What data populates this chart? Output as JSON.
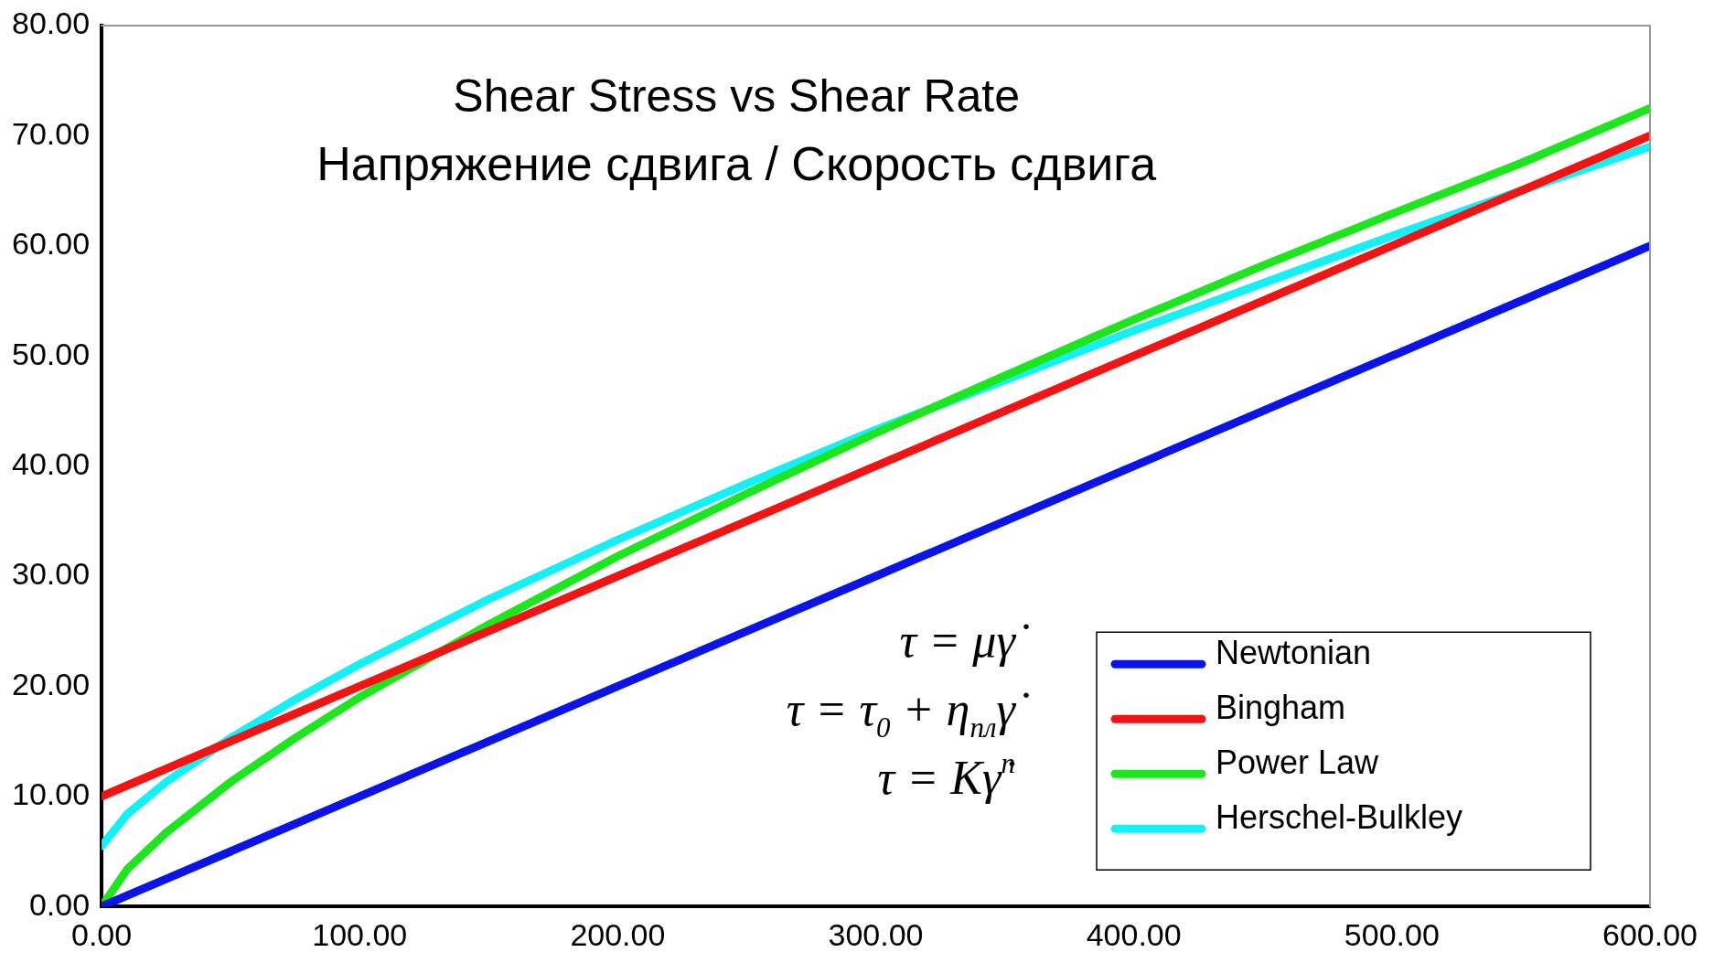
{
  "chart_data": {
    "type": "line",
    "title": "Shear Stress vs Shear Rate",
    "subtitle": "Напряжение сдвига / Скорость сдвига",
    "x": [
      0,
      10,
      25,
      50,
      75,
      100,
      150,
      200,
      250,
      300,
      350,
      400,
      450,
      500,
      550,
      600
    ],
    "series": [
      {
        "name": "Newtonian",
        "color": "#0a14e6",
        "values": [
          0,
          1,
          2.5,
          5,
          7.5,
          10,
          15,
          20,
          25,
          30,
          35,
          40,
          45,
          50,
          55,
          60
        ]
      },
      {
        "name": "Bingham",
        "color": "#f01414",
        "values": [
          10,
          11,
          12.5,
          15,
          17.5,
          20,
          25,
          30,
          35,
          40,
          45,
          50,
          55,
          60,
          65,
          70
        ]
      },
      {
        "name": "Power Law",
        "color": "#1ee61e",
        "values": [
          0,
          3.4,
          6.7,
          11.3,
          15.3,
          19,
          25.6,
          31.8,
          37.5,
          43,
          48.2,
          53.3,
          58.2,
          62.9,
          67.5,
          72.5
        ]
      },
      {
        "name": "Herschel-Bulkley",
        "color": "#14f0f5",
        "values": [
          5.5,
          8.4,
          11.3,
          15.3,
          18.8,
          22,
          27.9,
          33.3,
          38.4,
          43.3,
          47.8,
          52.3,
          56.6,
          60.9,
          65,
          69
        ]
      }
    ],
    "xlim": [
      0,
      600
    ],
    "xticks": [
      {
        "value": 0,
        "label": "0.00"
      },
      {
        "value": 100,
        "label": "100.00"
      },
      {
        "value": 200,
        "label": "200.00"
      },
      {
        "value": 300,
        "label": "300.00"
      },
      {
        "value": 400,
        "label": "400.00"
      },
      {
        "value": 500,
        "label": "500.00"
      },
      {
        "value": 600,
        "label": "600.00"
      }
    ],
    "ylim": [
      0,
      80
    ],
    "yticks": [
      {
        "value": 0,
        "label": "0.00"
      },
      {
        "value": 10,
        "label": "10.00"
      },
      {
        "value": 20,
        "label": "20.00"
      },
      {
        "value": 30,
        "label": "30.00"
      },
      {
        "value": 40,
        "label": "40.00"
      },
      {
        "value": 50,
        "label": "50.00"
      },
      {
        "value": 60,
        "label": "60.00"
      },
      {
        "value": 70,
        "label": "70.00"
      },
      {
        "value": 80,
        "label": "80.00"
      }
    ],
    "annotations": [
      "τ = μγ̇",
      "τ = τ$_{0}$ + η$_{пл}$γ̇",
      "τ = Kγ̇$^{n}$"
    ],
    "grid": false,
    "legend": "bottom right",
    "marker": "none",
    "line_style": "solid"
  }
}
